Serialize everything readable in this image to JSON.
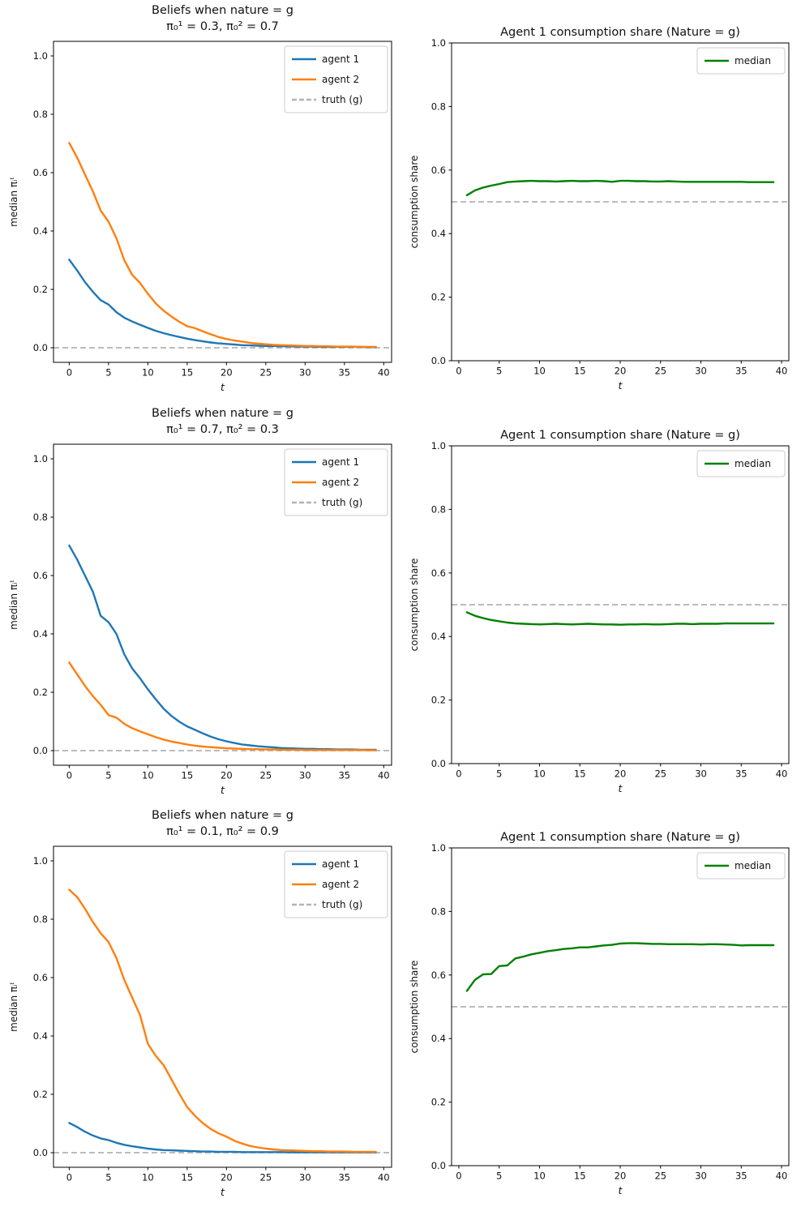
{
  "colors": {
    "agent1": "#1f77b4",
    "agent2": "#ff7f0e",
    "median": "#008000",
    "truth": "#b3b3b3",
    "axis": "#000000",
    "text": "#111111",
    "legend_border": "#cccccc",
    "background": "#ffffff"
  },
  "chart_data": [
    {
      "type": "line",
      "position": "row1-left",
      "title": "Beliefs when nature = g",
      "subtitle": "π₀¹ = 0.3, π₀² = 0.7",
      "xlabel": "t",
      "ylabel": "median πᵢᵗ",
      "xlim": [
        -2,
        41
      ],
      "ylim": [
        -0.05,
        1.05
      ],
      "xticks": [
        0,
        5,
        10,
        15,
        20,
        25,
        30,
        35,
        40
      ],
      "yticks": [
        0.0,
        0.2,
        0.4,
        0.6,
        0.8,
        1.0
      ],
      "grid": false,
      "legend_position": "upper right",
      "x": [
        0,
        1,
        2,
        3,
        4,
        5,
        6,
        7,
        8,
        9,
        10,
        11,
        12,
        13,
        14,
        15,
        16,
        17,
        18,
        19,
        20,
        21,
        22,
        23,
        24,
        25,
        26,
        27,
        28,
        29,
        30,
        31,
        32,
        33,
        34,
        35,
        36,
        37,
        38,
        39
      ],
      "series": [
        {
          "name": "agent 1",
          "color": "#1f77b4",
          "values": [
            0.302,
            0.265,
            0.225,
            0.192,
            0.163,
            0.148,
            0.122,
            0.103,
            0.09,
            0.079,
            0.068,
            0.058,
            0.05,
            0.043,
            0.037,
            0.031,
            0.026,
            0.022,
            0.018,
            0.015,
            0.013,
            0.011,
            0.009,
            0.008,
            0.007,
            0.006,
            0.006,
            0.005,
            0.005,
            0.004,
            0.004,
            0.004,
            0.003,
            0.003,
            0.003,
            0.003,
            0.003,
            0.003,
            0.002,
            0.002
          ]
        },
        {
          "name": "agent 2",
          "color": "#ff7f0e",
          "values": [
            0.702,
            0.652,
            0.594,
            0.536,
            0.47,
            0.432,
            0.375,
            0.3,
            0.25,
            0.222,
            0.185,
            0.152,
            0.127,
            0.107,
            0.089,
            0.074,
            0.067,
            0.056,
            0.046,
            0.037,
            0.03,
            0.025,
            0.021,
            0.017,
            0.014,
            0.012,
            0.01,
            0.009,
            0.008,
            0.007,
            0.006,
            0.006,
            0.005,
            0.005,
            0.004,
            0.004,
            0.004,
            0.003,
            0.003,
            0.003
          ]
        }
      ],
      "reference_line": {
        "y": 0.0,
        "label": "truth (g)",
        "color": "#b3b3b3",
        "dashed": true,
        "in_legend": true
      }
    },
    {
      "type": "line",
      "position": "row1-right",
      "title": "Agent 1 consumption share (Nature = g)",
      "subtitle": "",
      "xlabel": "t",
      "ylabel": "consumption share",
      "xlim": [
        -0.9,
        40.9
      ],
      "ylim": [
        0.0,
        1.0
      ],
      "xticks": [
        0,
        5,
        10,
        15,
        20,
        25,
        30,
        35,
        40
      ],
      "yticks": [
        0.0,
        0.2,
        0.4,
        0.6,
        0.8,
        1.0
      ],
      "grid": false,
      "legend_position": "upper right",
      "x": [
        1,
        2,
        3,
        4,
        5,
        6,
        7,
        8,
        9,
        10,
        11,
        12,
        13,
        14,
        15,
        16,
        17,
        18,
        19,
        20,
        21,
        22,
        23,
        24,
        25,
        26,
        27,
        28,
        29,
        30,
        31,
        32,
        33,
        34,
        35,
        36,
        37,
        38,
        39
      ],
      "series": [
        {
          "name": "median",
          "color": "#008000",
          "values": [
            0.521,
            0.536,
            0.545,
            0.551,
            0.556,
            0.562,
            0.564,
            0.565,
            0.566,
            0.565,
            0.565,
            0.564,
            0.565,
            0.566,
            0.565,
            0.565,
            0.566,
            0.565,
            0.563,
            0.566,
            0.566,
            0.565,
            0.565,
            0.564,
            0.564,
            0.565,
            0.564,
            0.563,
            0.563,
            0.563,
            0.563,
            0.563,
            0.563,
            0.563,
            0.563,
            0.562,
            0.562,
            0.562,
            0.562
          ]
        }
      ],
      "reference_line": {
        "y": 0.5,
        "label": "",
        "color": "#b3b3b3",
        "dashed": true,
        "in_legend": false
      }
    },
    {
      "type": "line",
      "position": "row2-left",
      "title": "Beliefs when nature = g",
      "subtitle": "π₀¹ = 0.7, π₀² = 0.3",
      "xlabel": "t",
      "ylabel": "median πᵢᵗ",
      "xlim": [
        -2,
        41
      ],
      "ylim": [
        -0.05,
        1.05
      ],
      "xticks": [
        0,
        5,
        10,
        15,
        20,
        25,
        30,
        35,
        40
      ],
      "yticks": [
        0.0,
        0.2,
        0.4,
        0.6,
        0.8,
        1.0
      ],
      "grid": false,
      "legend_position": "upper right",
      "x": [
        0,
        1,
        2,
        3,
        4,
        5,
        6,
        7,
        8,
        9,
        10,
        11,
        12,
        13,
        14,
        15,
        16,
        17,
        18,
        19,
        20,
        21,
        22,
        23,
        24,
        25,
        26,
        27,
        28,
        29,
        30,
        31,
        32,
        33,
        34,
        35,
        36,
        37,
        38,
        39
      ],
      "series": [
        {
          "name": "agent 1",
          "color": "#1f77b4",
          "values": [
            0.703,
            0.655,
            0.6,
            0.545,
            0.462,
            0.44,
            0.4,
            0.33,
            0.282,
            0.248,
            0.21,
            0.176,
            0.144,
            0.119,
            0.099,
            0.083,
            0.071,
            0.059,
            0.048,
            0.039,
            0.032,
            0.026,
            0.021,
            0.018,
            0.015,
            0.013,
            0.011,
            0.009,
            0.008,
            0.007,
            0.006,
            0.006,
            0.005,
            0.005,
            0.004,
            0.004,
            0.004,
            0.003,
            0.003,
            0.003
          ]
        },
        {
          "name": "agent 2",
          "color": "#ff7f0e",
          "values": [
            0.302,
            0.262,
            0.222,
            0.187,
            0.157,
            0.122,
            0.113,
            0.092,
            0.077,
            0.066,
            0.056,
            0.046,
            0.038,
            0.031,
            0.026,
            0.021,
            0.017,
            0.014,
            0.012,
            0.01,
            0.008,
            0.007,
            0.006,
            0.005,
            0.005,
            0.004,
            0.004,
            0.003,
            0.003,
            0.003,
            0.002,
            0.002,
            0.002,
            0.002,
            0.002,
            0.002,
            0.002,
            0.002,
            0.001,
            0.001
          ]
        }
      ],
      "reference_line": {
        "y": 0.0,
        "label": "truth (g)",
        "color": "#b3b3b3",
        "dashed": true,
        "in_legend": true
      }
    },
    {
      "type": "line",
      "position": "row2-right",
      "title": "Agent 1 consumption share (Nature = g)",
      "subtitle": "",
      "xlabel": "t",
      "ylabel": "consumption share",
      "xlim": [
        -0.9,
        40.9
      ],
      "ylim": [
        0.0,
        1.0
      ],
      "xticks": [
        0,
        5,
        10,
        15,
        20,
        25,
        30,
        35,
        40
      ],
      "yticks": [
        0.0,
        0.2,
        0.4,
        0.6,
        0.8,
        1.0
      ],
      "grid": false,
      "legend_position": "upper right",
      "x": [
        1,
        2,
        3,
        4,
        5,
        6,
        7,
        8,
        9,
        10,
        11,
        12,
        13,
        14,
        15,
        16,
        17,
        18,
        19,
        20,
        21,
        22,
        23,
        24,
        25,
        26,
        27,
        28,
        29,
        30,
        31,
        32,
        33,
        34,
        35,
        36,
        37,
        38,
        39
      ],
      "series": [
        {
          "name": "median",
          "color": "#008000",
          "values": [
            0.476,
            0.465,
            0.458,
            0.452,
            0.448,
            0.444,
            0.441,
            0.44,
            0.439,
            0.438,
            0.439,
            0.44,
            0.439,
            0.438,
            0.439,
            0.44,
            0.439,
            0.438,
            0.438,
            0.437,
            0.438,
            0.438,
            0.439,
            0.438,
            0.438,
            0.439,
            0.44,
            0.44,
            0.439,
            0.44,
            0.44,
            0.44,
            0.441,
            0.441,
            0.441,
            0.441,
            0.441,
            0.441,
            0.441
          ]
        }
      ],
      "reference_line": {
        "y": 0.5,
        "label": "",
        "color": "#b3b3b3",
        "dashed": true,
        "in_legend": false
      }
    },
    {
      "type": "line",
      "position": "row3-left",
      "title": "Beliefs when nature = g",
      "subtitle": "π₀¹ = 0.1, π₀² = 0.9",
      "xlabel": "t",
      "ylabel": "median πᵢᵗ",
      "xlim": [
        -2,
        41
      ],
      "ylim": [
        -0.05,
        1.05
      ],
      "xticks": [
        0,
        5,
        10,
        15,
        20,
        25,
        30,
        35,
        40
      ],
      "yticks": [
        0.0,
        0.2,
        0.4,
        0.6,
        0.8,
        1.0
      ],
      "grid": false,
      "legend_position": "upper right",
      "x": [
        0,
        1,
        2,
        3,
        4,
        5,
        6,
        7,
        8,
        9,
        10,
        11,
        12,
        13,
        14,
        15,
        16,
        17,
        18,
        19,
        20,
        21,
        22,
        23,
        24,
        25,
        26,
        27,
        28,
        29,
        30,
        31,
        32,
        33,
        34,
        35,
        36,
        37,
        38,
        39
      ],
      "series": [
        {
          "name": "agent 1",
          "color": "#1f77b4",
          "values": [
            0.102,
            0.088,
            0.072,
            0.059,
            0.049,
            0.043,
            0.034,
            0.027,
            0.022,
            0.018,
            0.014,
            0.011,
            0.009,
            0.008,
            0.007,
            0.006,
            0.005,
            0.004,
            0.004,
            0.003,
            0.003,
            0.003,
            0.002,
            0.002,
            0.002,
            0.002,
            0.002,
            0.002,
            0.001,
            0.001,
            0.001,
            0.001,
            0.001,
            0.001,
            0.001,
            0.001,
            0.001,
            0.001,
            0.001,
            0.001
          ]
        },
        {
          "name": "agent 2",
          "color": "#ff7f0e",
          "values": [
            0.901,
            0.876,
            0.836,
            0.791,
            0.752,
            0.722,
            0.667,
            0.592,
            0.532,
            0.472,
            0.373,
            0.332,
            0.3,
            0.251,
            0.202,
            0.156,
            0.126,
            0.101,
            0.081,
            0.066,
            0.055,
            0.041,
            0.031,
            0.023,
            0.018,
            0.014,
            0.011,
            0.009,
            0.008,
            0.007,
            0.006,
            0.005,
            0.005,
            0.004,
            0.004,
            0.004,
            0.003,
            0.003,
            0.003,
            0.003
          ]
        }
      ],
      "reference_line": {
        "y": 0.0,
        "label": "truth (g)",
        "color": "#b3b3b3",
        "dashed": true,
        "in_legend": true
      }
    },
    {
      "type": "line",
      "position": "row3-right",
      "title": "Agent 1 consumption share (Nature = g)",
      "subtitle": "",
      "xlabel": "t",
      "ylabel": "consumption share",
      "xlim": [
        -0.9,
        40.9
      ],
      "ylim": [
        0.0,
        1.0
      ],
      "xticks": [
        0,
        5,
        10,
        15,
        20,
        25,
        30,
        35,
        40
      ],
      "yticks": [
        0.0,
        0.2,
        0.4,
        0.6,
        0.8,
        1.0
      ],
      "grid": false,
      "legend_position": "upper right",
      "x": [
        1,
        2,
        3,
        4,
        5,
        6,
        7,
        8,
        9,
        10,
        11,
        12,
        13,
        14,
        15,
        16,
        17,
        18,
        19,
        20,
        21,
        22,
        23,
        24,
        25,
        26,
        27,
        28,
        29,
        30,
        31,
        32,
        33,
        34,
        35,
        36,
        37,
        38,
        39
      ],
      "series": [
        {
          "name": "median",
          "color": "#008000",
          "values": [
            0.55,
            0.585,
            0.602,
            0.603,
            0.628,
            0.63,
            0.652,
            0.658,
            0.665,
            0.67,
            0.675,
            0.678,
            0.682,
            0.684,
            0.687,
            0.687,
            0.69,
            0.693,
            0.695,
            0.699,
            0.7,
            0.7,
            0.699,
            0.698,
            0.698,
            0.697,
            0.697,
            0.697,
            0.697,
            0.696,
            0.697,
            0.697,
            0.696,
            0.695,
            0.693,
            0.694,
            0.694,
            0.694,
            0.694
          ]
        }
      ],
      "reference_line": {
        "y": 0.5,
        "label": "",
        "color": "#b3b3b3",
        "dashed": true,
        "in_legend": false
      }
    }
  ]
}
